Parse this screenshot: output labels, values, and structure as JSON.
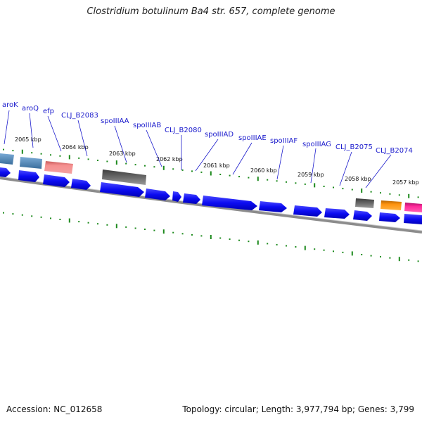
{
  "title": "Clostridium botulinum Ba4 str. 657, complete genome",
  "footer": {
    "accession": "Accession: NC_012658",
    "summary": "Topology: circular; Length: 3,977,794 bp; Genes: 3,799"
  },
  "scale_labels": [
    "2065 kbp",
    "2064 kbp",
    "2063 kbp",
    "2062 kbp",
    "2061 kbp",
    "2060 kbp",
    "2059 kbp",
    "2058 kbp",
    "2057 kbp"
  ],
  "gene_labels": [
    "aroK",
    "aroQ",
    "efp",
    "CLJ_B2083",
    "spoIIIAA",
    "spoIIIAB",
    "CLJ_B2080",
    "spoIIIAD",
    "spoIIIAE",
    "spoIIIAF",
    "spoIIIAG",
    "CLJ_B2075",
    "CLJ_B2074"
  ],
  "colors": {
    "gene_label": "#1a1acc",
    "cds": "#1010ee",
    "tick": "#1d8a1d",
    "backbone": "#8c8c8c",
    "feature_steelblue": "#4682b4",
    "feature_pink": "#f08080",
    "feature_gray": "#5c5c5c",
    "feature_orange": "#ff8c00",
    "feature_magenta": "#ff1493"
  }
}
